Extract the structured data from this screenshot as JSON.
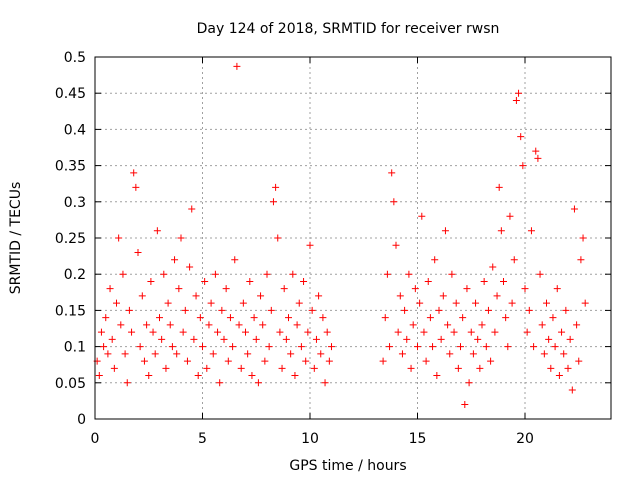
{
  "chart_data": {
    "type": "scatter",
    "title": "Day 124 of 2018, SRMTID for receiver rwsn",
    "xlabel": "GPS time / hours",
    "ylabel": "SRMTID / TECUs",
    "xlim": [
      0,
      24
    ],
    "ylim": [
      0,
      0.5
    ],
    "xticks": [
      0,
      5,
      10,
      15,
      20
    ],
    "xtick_labels": [
      "0",
      "5",
      "10",
      "15",
      "20"
    ],
    "yticks": [
      0,
      0.05,
      0.1,
      0.15,
      0.2,
      0.25,
      0.3,
      0.35,
      0.4,
      0.45,
      0.5
    ],
    "ytick_labels": [
      "0",
      "0.05",
      "0.1",
      "0.15",
      "0.2",
      "0.25",
      "0.3",
      "0.35",
      "0.4",
      "0.45",
      "0.5"
    ],
    "grid": true,
    "marker": "+",
    "color": "#ff0000",
    "series": [
      {
        "name": "SRMTID",
        "points": [
          [
            0.1,
            0.08
          ],
          [
            0.2,
            0.06
          ],
          [
            0.3,
            0.12
          ],
          [
            0.4,
            0.1
          ],
          [
            0.5,
            0.14
          ],
          [
            0.6,
            0.09
          ],
          [
            0.7,
            0.18
          ],
          [
            0.8,
            0.11
          ],
          [
            0.9,
            0.07
          ],
          [
            1.0,
            0.16
          ],
          [
            1.1,
            0.25
          ],
          [
            1.2,
            0.13
          ],
          [
            1.3,
            0.2
          ],
          [
            1.4,
            0.09
          ],
          [
            1.5,
            0.05
          ],
          [
            1.6,
            0.15
          ],
          [
            1.7,
            0.12
          ],
          [
            1.8,
            0.34
          ],
          [
            1.9,
            0.32
          ],
          [
            2.0,
            0.23
          ],
          [
            2.1,
            0.1
          ],
          [
            2.2,
            0.17
          ],
          [
            2.3,
            0.08
          ],
          [
            2.4,
            0.13
          ],
          [
            2.5,
            0.06
          ],
          [
            2.6,
            0.19
          ],
          [
            2.7,
            0.12
          ],
          [
            2.8,
            0.09
          ],
          [
            2.9,
            0.26
          ],
          [
            3.0,
            0.14
          ],
          [
            3.1,
            0.11
          ],
          [
            3.2,
            0.2
          ],
          [
            3.3,
            0.07
          ],
          [
            3.4,
            0.16
          ],
          [
            3.5,
            0.13
          ],
          [
            3.6,
            0.1
          ],
          [
            3.7,
            0.22
          ],
          [
            3.8,
            0.09
          ],
          [
            3.9,
            0.18
          ],
          [
            4.0,
            0.25
          ],
          [
            4.1,
            0.12
          ],
          [
            4.2,
            0.15
          ],
          [
            4.3,
            0.08
          ],
          [
            4.4,
            0.21
          ],
          [
            4.5,
            0.29
          ],
          [
            4.6,
            0.11
          ],
          [
            4.7,
            0.17
          ],
          [
            4.8,
            0.06
          ],
          [
            4.9,
            0.14
          ],
          [
            5.0,
            0.1
          ],
          [
            5.1,
            0.19
          ],
          [
            5.2,
            0.07
          ],
          [
            5.3,
            0.13
          ],
          [
            5.4,
            0.16
          ],
          [
            5.5,
            0.09
          ],
          [
            5.6,
            0.2
          ],
          [
            5.7,
            0.12
          ],
          [
            5.8,
            0.05
          ],
          [
            5.9,
            0.15
          ],
          [
            6.0,
            0.11
          ],
          [
            6.1,
            0.18
          ],
          [
            6.2,
            0.08
          ],
          [
            6.3,
            0.14
          ],
          [
            6.4,
            0.1
          ],
          [
            6.5,
            0.22
          ],
          [
            6.6,
            0.487
          ],
          [
            6.7,
            0.13
          ],
          [
            6.8,
            0.07
          ],
          [
            6.9,
            0.16
          ],
          [
            7.0,
            0.12
          ],
          [
            7.1,
            0.09
          ],
          [
            7.2,
            0.19
          ],
          [
            7.3,
            0.06
          ],
          [
            7.4,
            0.14
          ],
          [
            7.5,
            0.11
          ],
          [
            7.6,
            0.05
          ],
          [
            7.7,
            0.17
          ],
          [
            7.8,
            0.13
          ],
          [
            7.9,
            0.08
          ],
          [
            8.0,
            0.2
          ],
          [
            8.1,
            0.1
          ],
          [
            8.2,
            0.15
          ],
          [
            8.3,
            0.3
          ],
          [
            8.4,
            0.32
          ],
          [
            8.5,
            0.25
          ],
          [
            8.6,
            0.12
          ],
          [
            8.7,
            0.07
          ],
          [
            8.8,
            0.18
          ],
          [
            8.9,
            0.11
          ],
          [
            9.0,
            0.14
          ],
          [
            9.1,
            0.09
          ],
          [
            9.2,
            0.2
          ],
          [
            9.3,
            0.06
          ],
          [
            9.4,
            0.13
          ],
          [
            9.5,
            0.16
          ],
          [
            9.6,
            0.1
          ],
          [
            9.7,
            0.19
          ],
          [
            9.8,
            0.08
          ],
          [
            9.9,
            0.12
          ],
          [
            10.0,
            0.24
          ],
          [
            10.1,
            0.15
          ],
          [
            10.2,
            0.07
          ],
          [
            10.3,
            0.11
          ],
          [
            10.4,
            0.17
          ],
          [
            10.5,
            0.09
          ],
          [
            10.6,
            0.14
          ],
          [
            10.7,
            0.05
          ],
          [
            10.8,
            0.12
          ],
          [
            10.9,
            0.08
          ],
          [
            11.0,
            0.1
          ],
          [
            13.4,
            0.08
          ],
          [
            13.5,
            0.14
          ],
          [
            13.6,
            0.2
          ],
          [
            13.7,
            0.1
          ],
          [
            13.8,
            0.34
          ],
          [
            13.9,
            0.3
          ],
          [
            14.0,
            0.24
          ],
          [
            14.1,
            0.12
          ],
          [
            14.2,
            0.17
          ],
          [
            14.3,
            0.09
          ],
          [
            14.4,
            0.15
          ],
          [
            14.5,
            0.11
          ],
          [
            14.6,
            0.2
          ],
          [
            14.7,
            0.07
          ],
          [
            14.8,
            0.13
          ],
          [
            14.9,
            0.18
          ],
          [
            15.0,
            0.1
          ],
          [
            15.1,
            0.16
          ],
          [
            15.2,
            0.28
          ],
          [
            15.3,
            0.12
          ],
          [
            15.4,
            0.08
          ],
          [
            15.5,
            0.19
          ],
          [
            15.6,
            0.14
          ],
          [
            15.7,
            0.1
          ],
          [
            15.8,
            0.22
          ],
          [
            15.9,
            0.06
          ],
          [
            16.0,
            0.15
          ],
          [
            16.1,
            0.11
          ],
          [
            16.2,
            0.17
          ],
          [
            16.3,
            0.26
          ],
          [
            16.4,
            0.13
          ],
          [
            16.5,
            0.09
          ],
          [
            16.6,
            0.2
          ],
          [
            16.7,
            0.12
          ],
          [
            16.8,
            0.16
          ],
          [
            16.9,
            0.07
          ],
          [
            17.0,
            0.1
          ],
          [
            17.1,
            0.14
          ],
          [
            17.2,
            0.02
          ],
          [
            17.3,
            0.18
          ],
          [
            17.4,
            0.05
          ],
          [
            17.5,
            0.12
          ],
          [
            17.6,
            0.09
          ],
          [
            17.7,
            0.16
          ],
          [
            17.8,
            0.11
          ],
          [
            17.9,
            0.07
          ],
          [
            18.0,
            0.13
          ],
          [
            18.1,
            0.19
          ],
          [
            18.2,
            0.1
          ],
          [
            18.3,
            0.15
          ],
          [
            18.4,
            0.08
          ],
          [
            18.5,
            0.21
          ],
          [
            18.6,
            0.12
          ],
          [
            18.7,
            0.17
          ],
          [
            18.8,
            0.32
          ],
          [
            18.9,
            0.26
          ],
          [
            19.0,
            0.19
          ],
          [
            19.1,
            0.14
          ],
          [
            19.2,
            0.1
          ],
          [
            19.3,
            0.28
          ],
          [
            19.4,
            0.16
          ],
          [
            19.5,
            0.22
          ],
          [
            19.6,
            0.44
          ],
          [
            19.7,
            0.45
          ],
          [
            19.8,
            0.39
          ],
          [
            19.9,
            0.35
          ],
          [
            20.0,
            0.18
          ],
          [
            20.1,
            0.12
          ],
          [
            20.2,
            0.15
          ],
          [
            20.3,
            0.26
          ],
          [
            20.4,
            0.1
          ],
          [
            20.5,
            0.37
          ],
          [
            20.6,
            0.36
          ],
          [
            20.7,
            0.2
          ],
          [
            20.8,
            0.13
          ],
          [
            20.9,
            0.09
          ],
          [
            21.0,
            0.16
          ],
          [
            21.1,
            0.11
          ],
          [
            21.2,
            0.07
          ],
          [
            21.3,
            0.14
          ],
          [
            21.4,
            0.1
          ],
          [
            21.5,
            0.18
          ],
          [
            21.6,
            0.06
          ],
          [
            21.7,
            0.12
          ],
          [
            21.8,
            0.09
          ],
          [
            21.9,
            0.15
          ],
          [
            22.0,
            0.07
          ],
          [
            22.1,
            0.11
          ],
          [
            22.2,
            0.04
          ],
          [
            22.3,
            0.29
          ],
          [
            22.4,
            0.13
          ],
          [
            22.5,
            0.08
          ],
          [
            22.6,
            0.22
          ],
          [
            22.7,
            0.25
          ],
          [
            22.8,
            0.16
          ]
        ]
      }
    ]
  }
}
